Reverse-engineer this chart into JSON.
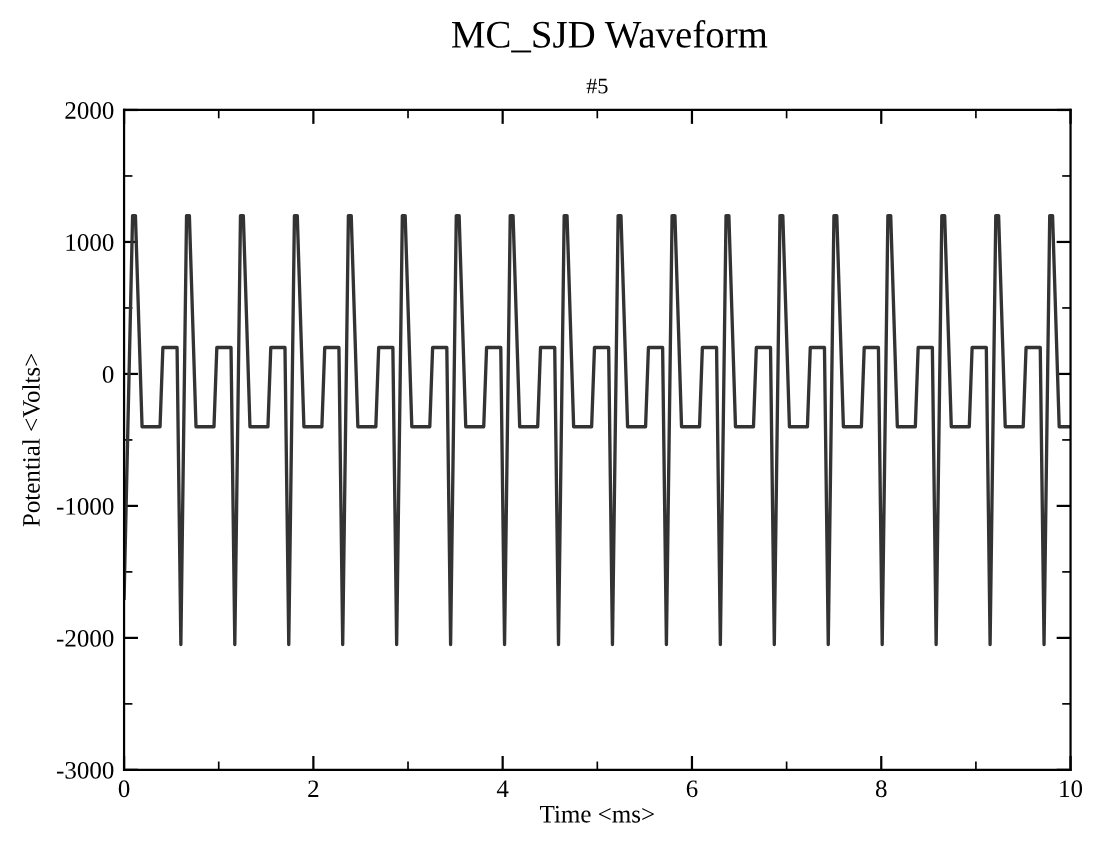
{
  "chart_data": {
    "type": "line",
    "title": "MC_SJD Waveform",
    "subtitle": "#5",
    "xlabel": "Time <ms>",
    "ylabel": "Potential <Volts>",
    "xlim": [
      0,
      10
    ],
    "xticks": [
      0,
      2,
      4,
      6,
      8,
      10
    ],
    "ylim": [
      -3000,
      2000
    ],
    "yticks": [
      -3000,
      -2000,
      -1000,
      0,
      1000,
      2000
    ],
    "grid": false,
    "legend": false,
    "marker": "none",
    "line_style": "solid",
    "series": [
      {
        "color": "#333333",
        "x": [
          0,
          0.09,
          0.12,
          0.19,
          0.38,
          0.41,
          0.56,
          0.6,
          0.66,
          0.69,
          0.76,
          0.95,
          0.98,
          1.13,
          1.17,
          1.23,
          1.26,
          1.33,
          1.52,
          1.55,
          1.7,
          1.74,
          1.8,
          1.83,
          1.9,
          2.09,
          2.12,
          2.27,
          2.31,
          2.37,
          2.4,
          2.47,
          2.66,
          2.69,
          2.84,
          2.88,
          2.94,
          2.97,
          3.04,
          3.23,
          3.26,
          3.41,
          3.45,
          3.51,
          3.54,
          3.61,
          3.8,
          3.83,
          3.98,
          4.02,
          4.08,
          4.11,
          4.18,
          4.37,
          4.4,
          4.55,
          4.59,
          4.65,
          4.68,
          4.75,
          4.94,
          4.97,
          5.12,
          5.16,
          5.22,
          5.25,
          5.32,
          5.51,
          5.54,
          5.69,
          5.73,
          5.79,
          5.82,
          5.89,
          6.08,
          6.11,
          6.26,
          6.3,
          6.36,
          6.39,
          6.46,
          6.65,
          6.68,
          6.83,
          6.87,
          6.93,
          6.96,
          7.03,
          7.22,
          7.25,
          7.4,
          7.44,
          7.5,
          7.53,
          7.6,
          7.79,
          7.82,
          7.97,
          8.01,
          8.07,
          8.1,
          8.17,
          8.36,
          8.39,
          8.54,
          8.58,
          8.64,
          8.67,
          8.74,
          8.93,
          8.96,
          9.11,
          9.15,
          9.21,
          9.24,
          9.31,
          9.5,
          9.53,
          9.68,
          9.72,
          9.78,
          9.81,
          9.88,
          10
        ],
        "values": [
          -1700,
          1200,
          1200,
          -400,
          -400,
          200,
          200,
          -2050,
          1200,
          1200,
          -400,
          -400,
          200,
          200,
          -2050,
          1200,
          1200,
          -400,
          -400,
          200,
          200,
          -2050,
          1200,
          1200,
          -400,
          -400,
          200,
          200,
          -2050,
          1200,
          1200,
          -400,
          -400,
          200,
          200,
          -2050,
          1200,
          1200,
          -400,
          -400,
          200,
          200,
          -2050,
          1200,
          1200,
          -400,
          -400,
          200,
          200,
          -2050,
          1200,
          1200,
          -400,
          -400,
          200,
          200,
          -2050,
          1200,
          1200,
          -400,
          -400,
          200,
          200,
          -2050,
          1200,
          1200,
          -400,
          -400,
          200,
          200,
          -2050,
          1200,
          1200,
          -400,
          -400,
          200,
          200,
          -2050,
          1200,
          1200,
          -400,
          -400,
          200,
          200,
          -2050,
          1200,
          1200,
          -400,
          -400,
          200,
          200,
          -2050,
          1200,
          1200,
          -400,
          -400,
          200,
          200,
          -2050,
          1200,
          1200,
          -400,
          -400,
          200,
          200,
          -2050,
          1200,
          1200,
          -400,
          -400,
          200,
          200,
          -2050,
          1200,
          1200,
          -400,
          -400,
          200,
          200,
          -2050,
          1200,
          1200,
          -400,
          -400
        ]
      }
    ]
  }
}
